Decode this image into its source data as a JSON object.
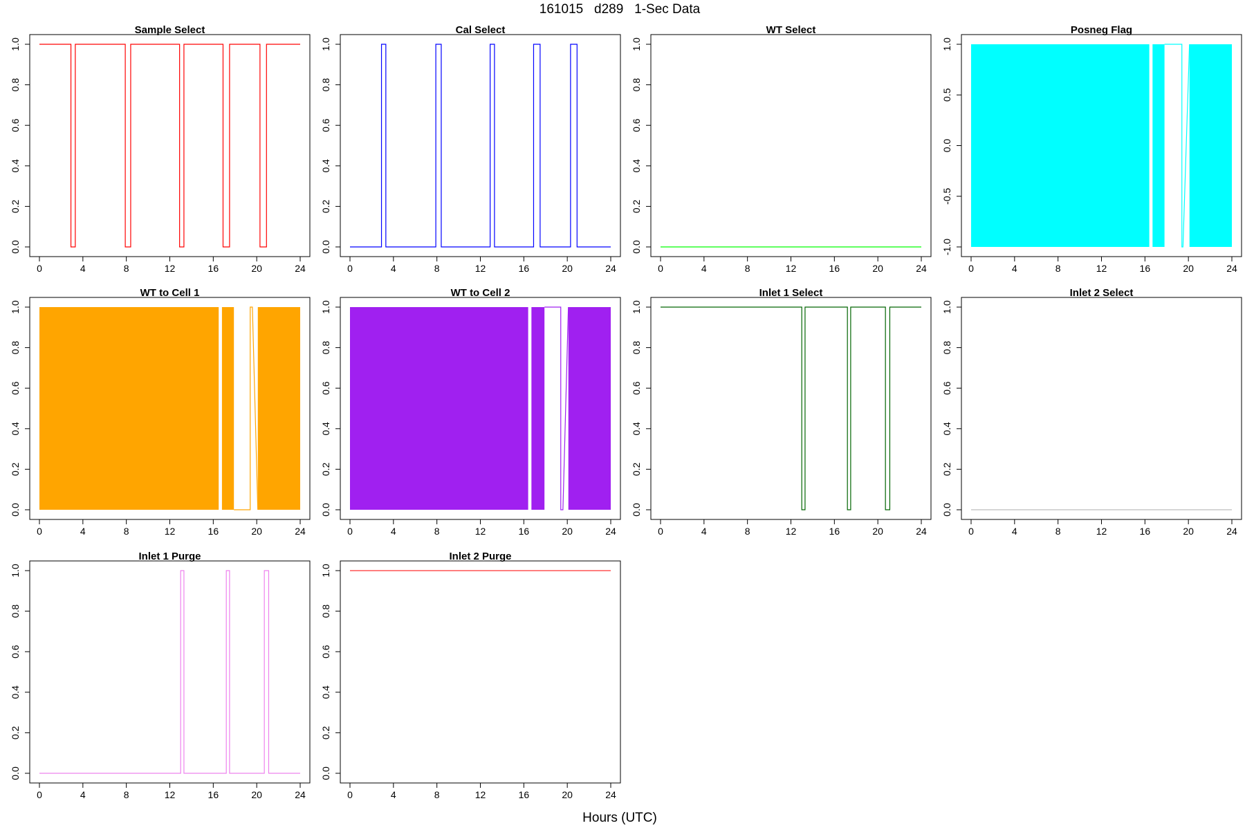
{
  "figure": {
    "title": "161015   d289   1-Sec Data",
    "xlabel": "Hours (UTC)"
  },
  "chart_data": [
    {
      "type": "line",
      "title": "Sample Select",
      "color": "#ff0000",
      "fill": false,
      "xlim": [
        0,
        24
      ],
      "ylim": [
        0,
        1
      ],
      "x_ticks": [
        0,
        4,
        8,
        12,
        16,
        20,
        24
      ],
      "y_ticks": [
        0,
        0.2,
        0.4,
        0.6,
        0.8,
        1
      ],
      "y_tick_labels": [
        "0.0",
        "0.2",
        "0.4",
        "0.6",
        "0.8",
        "1.0"
      ],
      "x": [
        0,
        2.9,
        2.9,
        3.3,
        3.3,
        7.9,
        7.9,
        8.4,
        8.4,
        12.9,
        12.9,
        13.3,
        13.3,
        16.9,
        16.9,
        17.5,
        17.5,
        20.3,
        20.3,
        20.9,
        20.9,
        24
      ],
      "y": [
        1,
        1,
        0,
        0,
        1,
        1,
        0,
        0,
        1,
        1,
        0,
        0,
        1,
        1,
        0,
        0,
        1,
        1,
        0,
        0,
        1,
        1
      ]
    },
    {
      "type": "line",
      "title": "Cal Select",
      "color": "#0000ff",
      "fill": false,
      "xlim": [
        0,
        24
      ],
      "ylim": [
        0,
        1
      ],
      "x_ticks": [
        0,
        4,
        8,
        12,
        16,
        20,
        24
      ],
      "y_ticks": [
        0,
        0.2,
        0.4,
        0.6,
        0.8,
        1
      ],
      "y_tick_labels": [
        "0.0",
        "0.2",
        "0.4",
        "0.6",
        "0.8",
        "1.0"
      ],
      "x": [
        0,
        2.9,
        2.9,
        3.3,
        3.3,
        7.9,
        7.9,
        8.4,
        8.4,
        12.9,
        12.9,
        13.3,
        13.3,
        16.9,
        16.9,
        17.5,
        17.5,
        20.3,
        20.3,
        20.9,
        20.9,
        24
      ],
      "y": [
        0,
        0,
        1,
        1,
        0,
        0,
        1,
        1,
        0,
        0,
        1,
        1,
        0,
        0,
        1,
        1,
        0,
        0,
        1,
        1,
        0,
        0
      ]
    },
    {
      "type": "line",
      "title": "WT Select",
      "color": "#00ff00",
      "fill": false,
      "xlim": [
        0,
        24
      ],
      "ylim": [
        0,
        1
      ],
      "x_ticks": [
        0,
        4,
        8,
        12,
        16,
        20,
        24
      ],
      "y_ticks": [
        0,
        0.2,
        0.4,
        0.6,
        0.8,
        1
      ],
      "y_tick_labels": [
        "0.0",
        "0.2",
        "0.4",
        "0.6",
        "0.8",
        "1.0"
      ],
      "x": [
        0,
        24
      ],
      "y": [
        0,
        0
      ]
    },
    {
      "type": "area",
      "title": "Posneg Flag",
      "color": "#00ffff",
      "fill": true,
      "xlim": [
        0,
        24
      ],
      "ylim": [
        -1,
        1
      ],
      "x_ticks": [
        0,
        4,
        8,
        12,
        16,
        20,
        24
      ],
      "y_ticks": [
        -1,
        -0.5,
        0,
        0.5,
        1
      ],
      "y_tick_labels": [
        "-1.0",
        "-0.5",
        "0.0",
        "0.5",
        "1.0"
      ],
      "bands": [
        [
          0,
          16.4
        ],
        [
          16.7,
          17.8
        ],
        [
          20.1,
          24
        ]
      ],
      "x": [
        17.8,
        19.4,
        19.4,
        19.5,
        20.1
      ],
      "y": [
        1,
        1,
        -1,
        -1,
        1
      ]
    },
    {
      "type": "area",
      "title": "WT to Cell 1",
      "color": "#ffa500",
      "fill": true,
      "xlim": [
        0,
        24
      ],
      "ylim": [
        0,
        1
      ],
      "x_ticks": [
        0,
        4,
        8,
        12,
        16,
        20,
        24
      ],
      "y_ticks": [
        0,
        0.2,
        0.4,
        0.6,
        0.8,
        1
      ],
      "y_tick_labels": [
        "0.0",
        "0.2",
        "0.4",
        "0.6",
        "0.8",
        "1.0"
      ],
      "bands": [
        [
          0,
          16.5
        ],
        [
          16.8,
          17.9
        ],
        [
          20.1,
          24
        ]
      ],
      "x": [
        17.9,
        19.4,
        19.4,
        19.6,
        20.1
      ],
      "y": [
        0,
        0,
        1,
        1,
        0
      ]
    },
    {
      "type": "area",
      "title": "WT to Cell 2",
      "color": "#a020f0",
      "fill": true,
      "xlim": [
        0,
        24
      ],
      "ylim": [
        0,
        1
      ],
      "x_ticks": [
        0,
        4,
        8,
        12,
        16,
        20,
        24
      ],
      "y_ticks": [
        0,
        0.2,
        0.4,
        0.6,
        0.8,
        1
      ],
      "y_tick_labels": [
        "0.0",
        "0.2",
        "0.4",
        "0.6",
        "0.8",
        "1.0"
      ],
      "bands": [
        [
          0,
          16.4
        ],
        [
          16.7,
          17.9
        ],
        [
          20.1,
          24
        ]
      ],
      "x": [
        17.9,
        19.4,
        19.4,
        19.6,
        20.1
      ],
      "y": [
        1,
        1,
        0,
        0,
        1
      ]
    },
    {
      "type": "line",
      "title": "Inlet 1 Select",
      "color": "#006400",
      "fill": false,
      "xlim": [
        0,
        24
      ],
      "ylim": [
        0,
        1
      ],
      "x_ticks": [
        0,
        4,
        8,
        12,
        16,
        20,
        24
      ],
      "y_ticks": [
        0,
        0.2,
        0.4,
        0.6,
        0.8,
        1
      ],
      "y_tick_labels": [
        "0.0",
        "0.2",
        "0.4",
        "0.6",
        "0.8",
        "1.0"
      ],
      "x": [
        0,
        13.0,
        13.0,
        13.3,
        13.3,
        17.2,
        17.2,
        17.5,
        17.5,
        20.7,
        20.7,
        21.1,
        21.1,
        24
      ],
      "y": [
        1,
        1,
        0,
        0,
        1,
        1,
        0,
        0,
        1,
        1,
        0,
        0,
        1,
        1
      ]
    },
    {
      "type": "line",
      "title": "Inlet 2 Select",
      "color": "#bebebe",
      "fill": false,
      "xlim": [
        0,
        24
      ],
      "ylim": [
        0,
        1
      ],
      "x_ticks": [
        0,
        4,
        8,
        12,
        16,
        20,
        24
      ],
      "y_ticks": [
        0,
        0.2,
        0.4,
        0.6,
        0.8,
        1
      ],
      "y_tick_labels": [
        "0.0",
        "0.2",
        "0.4",
        "0.6",
        "0.8",
        "1.0"
      ],
      "x": [
        0,
        24
      ],
      "y": [
        0,
        0
      ]
    },
    {
      "type": "line",
      "title": "Inlet 1 Purge",
      "color": "#ee82ee",
      "fill": false,
      "xlim": [
        0,
        24
      ],
      "ylim": [
        0,
        1
      ],
      "x_ticks": [
        0,
        4,
        8,
        12,
        16,
        20,
        24
      ],
      "y_ticks": [
        0,
        0.2,
        0.4,
        0.6,
        0.8,
        1
      ],
      "y_tick_labels": [
        "0.0",
        "0.2",
        "0.4",
        "0.6",
        "0.8",
        "1.0"
      ],
      "x": [
        0,
        13.0,
        13.0,
        13.3,
        13.3,
        17.2,
        17.2,
        17.5,
        17.5,
        20.7,
        20.7,
        21.1,
        21.1,
        24
      ],
      "y": [
        0,
        0,
        1,
        1,
        0,
        0,
        1,
        1,
        0,
        0,
        1,
        1,
        0,
        0
      ]
    },
    {
      "type": "line",
      "title": "Inlet 2 Purge",
      "color": "#ff3030",
      "fill": false,
      "xlim": [
        0,
        24
      ],
      "ylim": [
        0,
        1
      ],
      "x_ticks": [
        0,
        4,
        8,
        12,
        16,
        20,
        24
      ],
      "y_ticks": [
        0,
        0.2,
        0.4,
        0.6,
        0.8,
        1
      ],
      "y_tick_labels": [
        "0.0",
        "0.2",
        "0.4",
        "0.6",
        "0.8",
        "1.0"
      ],
      "x": [
        0,
        24
      ],
      "y": [
        1,
        1
      ]
    }
  ]
}
